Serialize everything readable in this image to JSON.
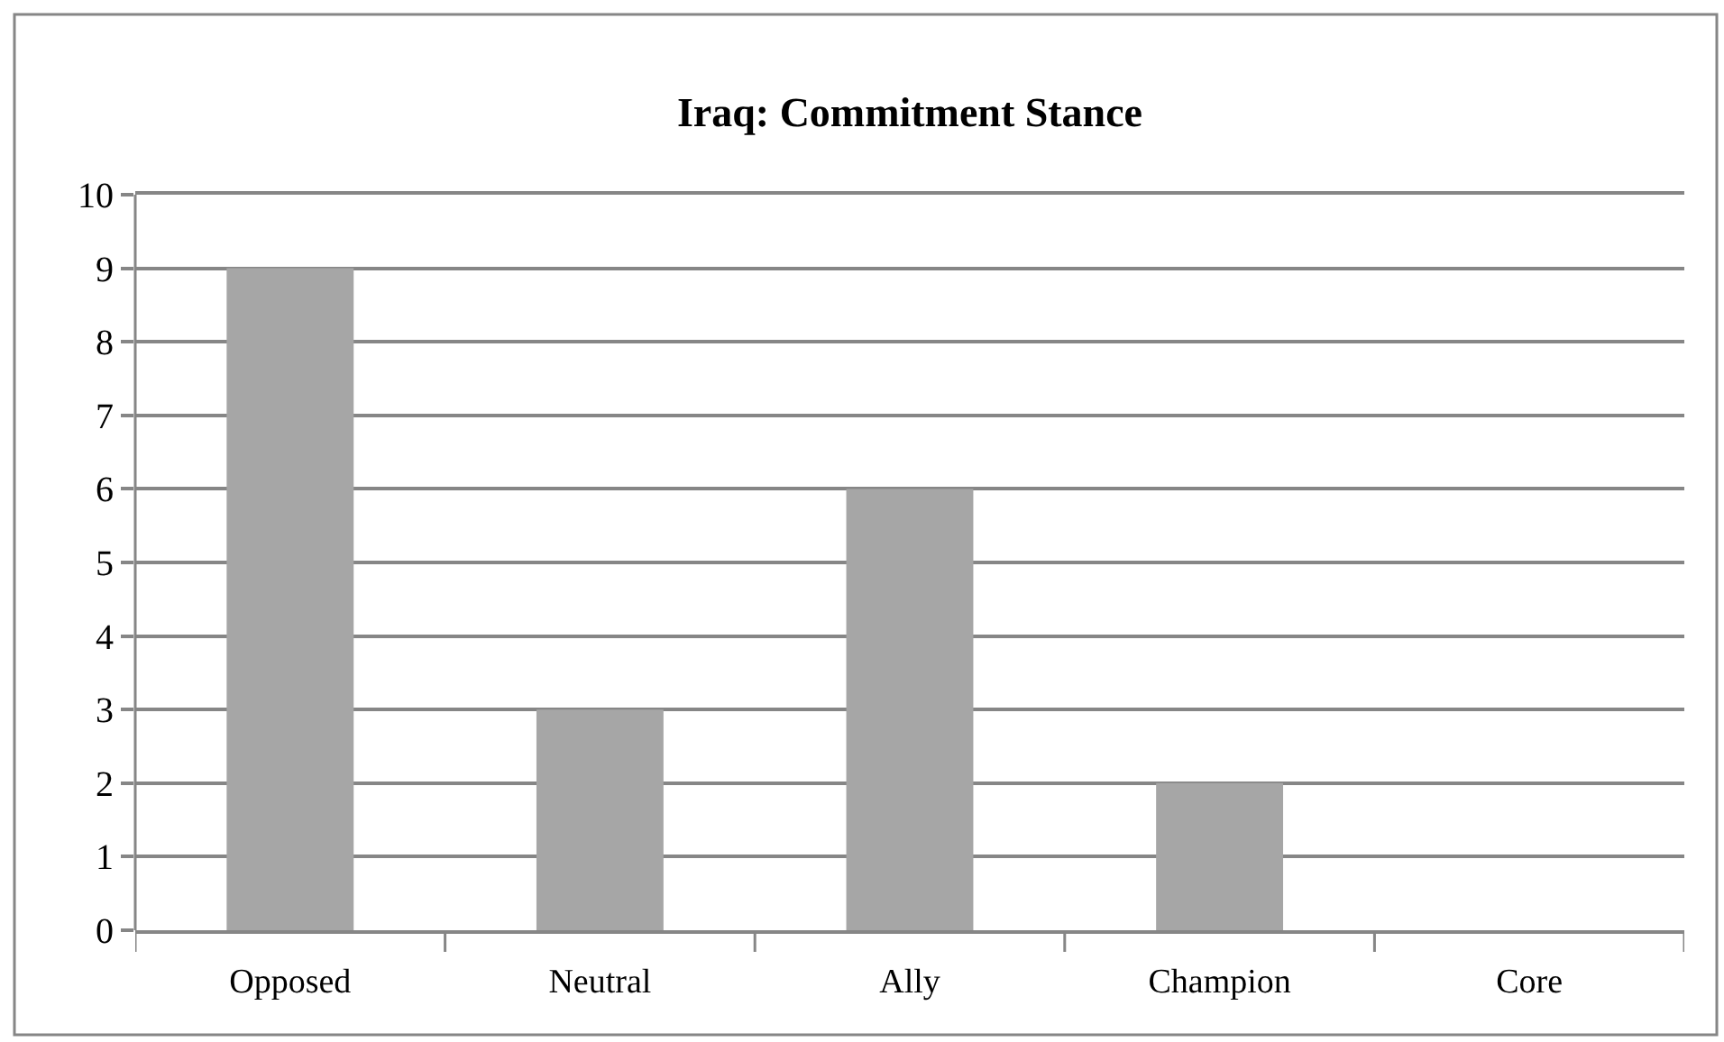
{
  "chart_data": {
    "type": "bar",
    "title": "Iraq: Commitment Stance",
    "categories": [
      "Opposed",
      "Neutral",
      "Ally",
      "Champion",
      "Core"
    ],
    "values": [
      9,
      3,
      6,
      2,
      0
    ],
    "color": "#a6a6a6",
    "ylim": [
      0,
      10
    ],
    "yticks": [
      0,
      1,
      2,
      3,
      4,
      5,
      6,
      7,
      8,
      9,
      10
    ],
    "grid": "y"
  }
}
